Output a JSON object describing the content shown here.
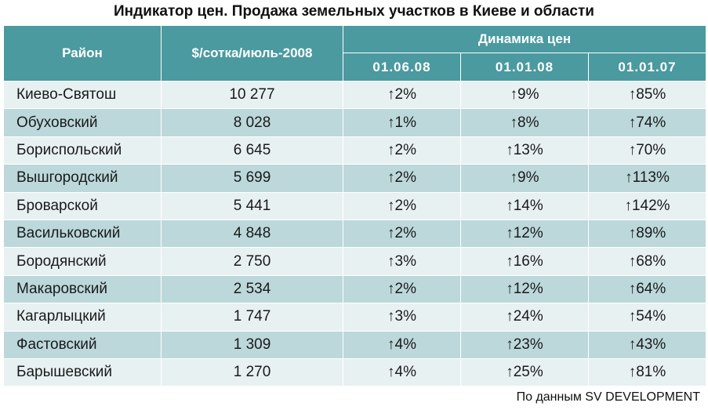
{
  "title": "Индикатор цен. Продажа земельных участков в Киеве и области",
  "headers": {
    "district": "Район",
    "price": "$/сотка/июль-2008",
    "dynamics": "Динамика цен",
    "dates": [
      "01.06.08",
      "01.01.08",
      "01.01.07"
    ]
  },
  "rows": [
    {
      "district": "Киево-Святош",
      "price": "10 277",
      "d1": "↑2%",
      "d2": "↑9%",
      "d3": "↑85%"
    },
    {
      "district": "Обуховский",
      "price": "8 028",
      "d1": "↑1%",
      "d2": "↑8%",
      "d3": "↑74%"
    },
    {
      "district": "Бориспольский",
      "price": "6 645",
      "d1": "↑2%",
      "d2": "↑13%",
      "d3": "↑70%"
    },
    {
      "district": "Вышгородский",
      "price": "5 699",
      "d1": "↑2%",
      "d2": "↑9%",
      "d3": "↑113%"
    },
    {
      "district": "Броварской",
      "price": "5 441",
      "d1": "↑2%",
      "d2": "↑14%",
      "d3": "↑142%"
    },
    {
      "district": "Васильковский",
      "price": "4 848",
      "d1": "↑2%",
      "d2": "↑12%",
      "d3": "↑89%"
    },
    {
      "district": "Бородянский",
      "price": "2 750",
      "d1": "↑3%",
      "d2": "↑16%",
      "d3": "↑68%"
    },
    {
      "district": "Макаровский",
      "price": "2 534",
      "d1": "↑2%",
      "d2": "↑12%",
      "d3": "↑64%"
    },
    {
      "district": "Кагарлыцкий",
      "price": "1 747",
      "d1": "↑3%",
      "d2": "↑24%",
      "d3": "↑54%"
    },
    {
      "district": "Фастовский",
      "price": "1 309",
      "d1": "↑4%",
      "d2": "↑23%",
      "d3": "↑43%"
    },
    {
      "district": "Барышевский",
      "price": "1 270",
      "d1": "↑4%",
      "d2": "↑25%",
      "d3": "↑81%"
    }
  ],
  "source": "По данным SV DEVELOPMENT",
  "colors": {
    "header_bg": "#4a9aa0",
    "row_light": "#e8f1f2",
    "row_dark": "#bcd8db"
  }
}
